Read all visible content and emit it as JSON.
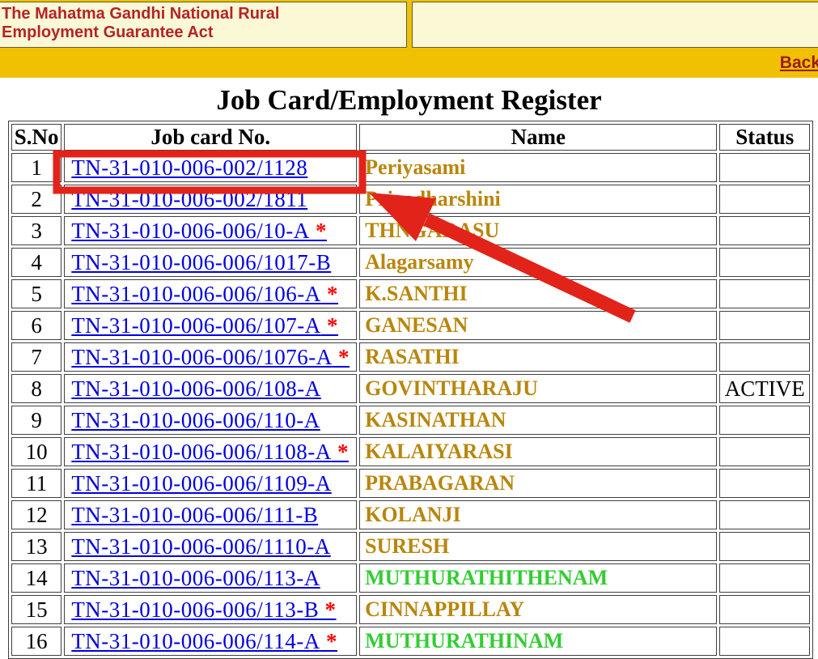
{
  "masthead": {
    "title": "The Mahatma Gandhi National Rural Employment Guarantee Act",
    "back_label": "Back"
  },
  "page": {
    "title": "Job Card/Employment Register"
  },
  "table": {
    "columns": [
      "S.No",
      "Job card No.",
      "Name",
      "Status"
    ],
    "asterisk_symbol": "*",
    "rows": [
      {
        "sno": "1",
        "job_card": "TN-31-010-006-002/1128",
        "asterisk": false,
        "name": "Periyasami",
        "name_color": "gold",
        "status": ""
      },
      {
        "sno": "2",
        "job_card": "TN-31-010-006-002/1811",
        "asterisk": false,
        "name": "Priyadharshini",
        "name_color": "gold",
        "status": ""
      },
      {
        "sno": "3",
        "job_card": "TN-31-010-006-006/10-A",
        "asterisk": true,
        "name": "THNGARASU",
        "name_color": "gold",
        "status": ""
      },
      {
        "sno": "4",
        "job_card": "TN-31-010-006-006/1017-B",
        "asterisk": false,
        "name": "Alagarsamy",
        "name_color": "gold",
        "status": ""
      },
      {
        "sno": "5",
        "job_card": "TN-31-010-006-006/106-A",
        "asterisk": true,
        "name": "K.SANTHI",
        "name_color": "gold",
        "status": ""
      },
      {
        "sno": "6",
        "job_card": "TN-31-010-006-006/107-A",
        "asterisk": true,
        "name": "GANESAN",
        "name_color": "gold",
        "status": ""
      },
      {
        "sno": "7",
        "job_card": "TN-31-010-006-006/1076-A",
        "asterisk": true,
        "name": "RASATHI",
        "name_color": "gold",
        "status": ""
      },
      {
        "sno": "8",
        "job_card": "TN-31-010-006-006/108-A",
        "asterisk": false,
        "name": "GOVINTHARAJU",
        "name_color": "gold",
        "status": "ACTIVE"
      },
      {
        "sno": "9",
        "job_card": "TN-31-010-006-006/110-A",
        "asterisk": false,
        "name": "KASINATHAN",
        "name_color": "gold",
        "status": ""
      },
      {
        "sno": "10",
        "job_card": "TN-31-010-006-006/1108-A",
        "asterisk": true,
        "name": "KALAIYARASI",
        "name_color": "gold",
        "status": ""
      },
      {
        "sno": "11",
        "job_card": "TN-31-010-006-006/1109-A",
        "asterisk": false,
        "name": "PRABAGARAN",
        "name_color": "gold",
        "status": ""
      },
      {
        "sno": "12",
        "job_card": "TN-31-010-006-006/111-B",
        "asterisk": false,
        "name": "KOLANJI",
        "name_color": "gold",
        "status": ""
      },
      {
        "sno": "13",
        "job_card": "TN-31-010-006-006/1110-A",
        "asterisk": false,
        "name": "SURESH",
        "name_color": "gold",
        "status": ""
      },
      {
        "sno": "14",
        "job_card": "TN-31-010-006-006/113-A",
        "asterisk": false,
        "name": "MUTHURATHITHENAM",
        "name_color": "green",
        "status": ""
      },
      {
        "sno": "15",
        "job_card": "TN-31-010-006-006/113-B",
        "asterisk": true,
        "name": "CINNAPPILLAY",
        "name_color": "gold",
        "status": ""
      },
      {
        "sno": "16",
        "job_card": "TN-31-010-006-006/114-A",
        "asterisk": true,
        "name": "MUTHURATHINAM",
        "name_color": "green",
        "status": ""
      }
    ]
  },
  "annotations": {
    "highlight_box": "red-rectangle-around-row-1-job-card",
    "arrow": "red-arrow-pointing-to-highlighted-job-card"
  },
  "colors": {
    "gold_bar": "#F0C003",
    "cream_panel": "#FAF8D5",
    "masthead_text": "#B32427",
    "back_link": "#9B1C12",
    "link_blue": "#0000E0",
    "name_gold": "#B8860B",
    "name_green": "#32CD32",
    "asterisk_red": "#FF0000",
    "annotation_red": "#E2231A"
  }
}
